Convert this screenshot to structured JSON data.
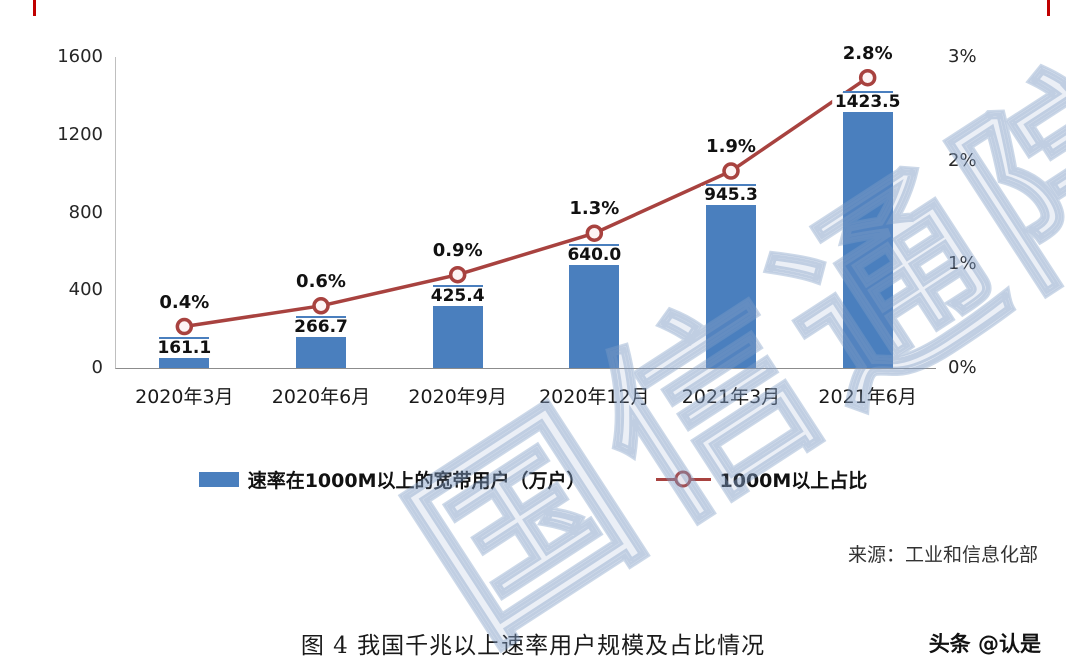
{
  "chart_data": {
    "type": "bar+line",
    "title": "",
    "categories": [
      "2020年3月",
      "2020年6月",
      "2020年9月",
      "2020年12月",
      "2021年3月",
      "2021年6月"
    ],
    "series": [
      {
        "name": "速率在1000M以上的宽带用户（万户）",
        "type": "bar",
        "axis": "left",
        "color": "#4a7fbe",
        "values": [
          161.1,
          266.7,
          425.4,
          640.0,
          945.3,
          1423.5
        ]
      },
      {
        "name": "1000M以上占比",
        "type": "line",
        "axis": "right",
        "color": "#a8423f",
        "values": [
          0.4,
          0.6,
          0.9,
          1.3,
          1.9,
          2.8
        ]
      }
    ],
    "bar_labels": [
      "161.1",
      "266.7",
      "425.4",
      "640.0",
      "945.3",
      "1423.5"
    ],
    "pct_labels": [
      "0.4%",
      "0.6%",
      "0.9%",
      "1.3%",
      "1.9%",
      "2.8%"
    ],
    "left_axis": {
      "ticks": [
        "0",
        "400",
        "800",
        "1200",
        "1600"
      ],
      "min": 0,
      "max": 1600
    },
    "right_axis": {
      "ticks": [
        "0%",
        "1%",
        "2%",
        "3%"
      ],
      "min": 0,
      "max": 3
    },
    "grid": "off",
    "legend_position": "bottom"
  },
  "footer": {
    "source": "来源：工业和信息化部",
    "caption": "图 4 我国千兆以上速率用户规模及占比情况",
    "credit": "头条 @认是"
  },
  "watermark": {
    "text": "国信通院"
  }
}
